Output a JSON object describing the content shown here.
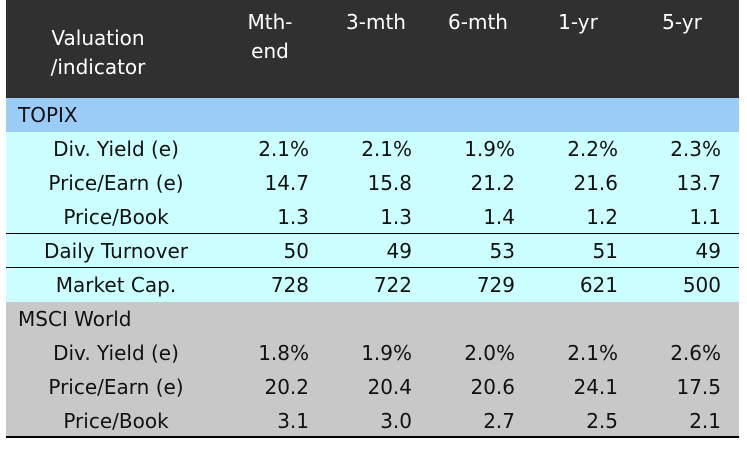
{
  "colors": {
    "header_bg": "#303030",
    "header_text": "#ffffff",
    "topix_section_bg": "#9bcbf7",
    "topix_rows_bg": "#ccffff",
    "msci_bg": "#c8c8c8",
    "separator": "#000000"
  },
  "header": {
    "label_line1": "Valuation",
    "label_line2": "/indicator",
    "columns": [
      {
        "line1": "Mth-",
        "line2": "end"
      },
      {
        "line1": "3-mth",
        "line2": ""
      },
      {
        "line1": "6-mth",
        "line2": ""
      },
      {
        "line1": "1-yr",
        "line2": ""
      },
      {
        "line1": "5-yr",
        "line2": ""
      }
    ]
  },
  "chart_data": {
    "type": "table",
    "columns": [
      "Mth-end",
      "3-mth",
      "6-mth",
      "1-yr",
      "5-yr"
    ],
    "sections": [
      {
        "name": "TOPIX",
        "rows": [
          {
            "label": "Div. Yield (e)",
            "values": [
              "2.1%",
              "2.1%",
              "1.9%",
              "2.2%",
              "2.3%"
            ]
          },
          {
            "label": "Price/Earn (e)",
            "values": [
              "14.7",
              "15.8",
              "21.2",
              "21.6",
              "13.7"
            ]
          },
          {
            "label": "Price/Book",
            "values": [
              "1.3",
              "1.3",
              "1.4",
              "1.2",
              "1.1"
            ]
          },
          {
            "label": "Daily Turnover",
            "values": [
              "50",
              "49",
              "53",
              "51",
              "49"
            ]
          },
          {
            "label": "Market Cap.",
            "values": [
              "728",
              "722",
              "729",
              "621",
              "500"
            ]
          }
        ]
      },
      {
        "name": "MSCI World",
        "rows": [
          {
            "label": "Div. Yield (e)",
            "values": [
              "1.8%",
              "1.9%",
              "2.0%",
              "2.1%",
              "2.6%"
            ]
          },
          {
            "label": "Price/Earn (e)",
            "values": [
              "20.2",
              "20.4",
              "20.6",
              "24.1",
              "17.5"
            ]
          },
          {
            "label": "Price/Book",
            "values": [
              "3.1",
              "3.0",
              "2.7",
              "2.5",
              "2.1"
            ]
          }
        ]
      }
    ]
  }
}
